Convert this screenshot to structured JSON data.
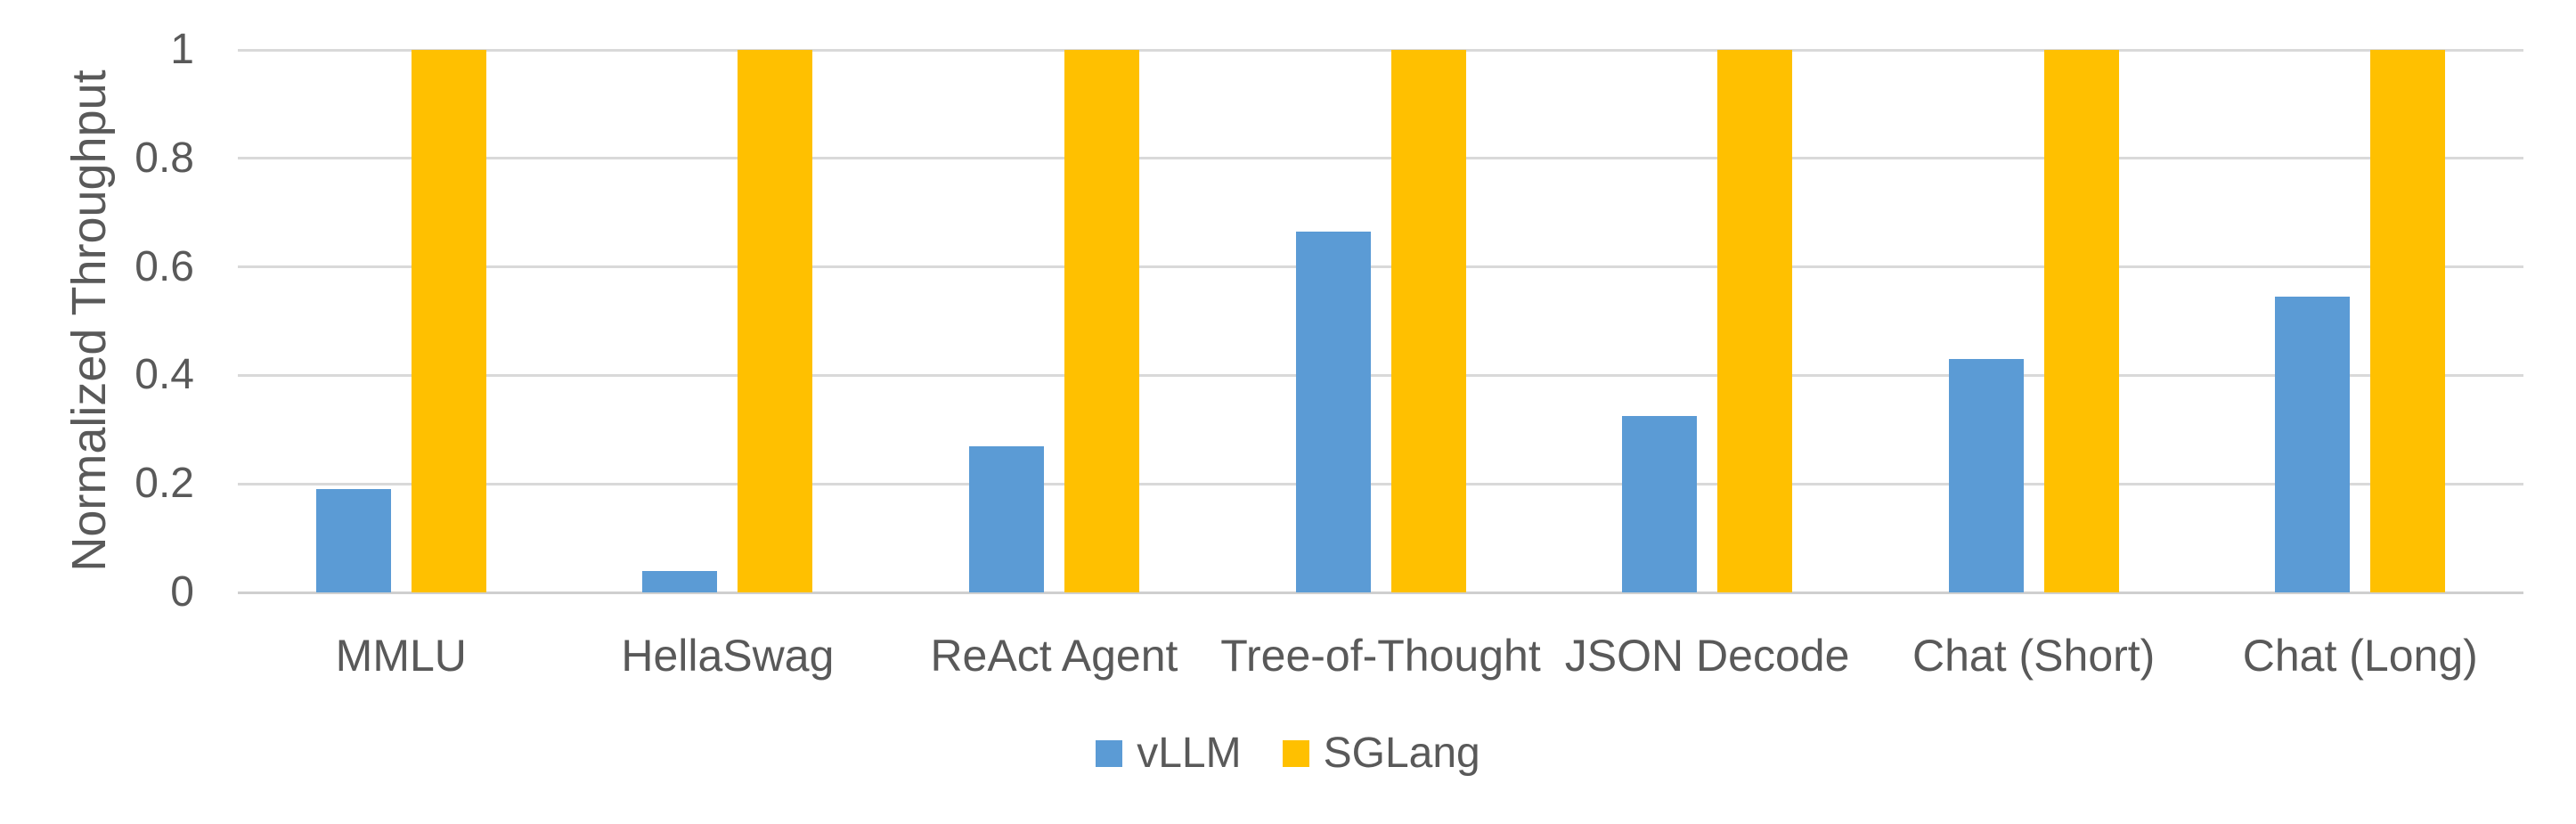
{
  "chart_data": {
    "type": "bar",
    "title": "",
    "xlabel": "",
    "ylabel": "Normalized Throughput",
    "categories": [
      "MMLU",
      "HellaSwag",
      "ReAct Agent",
      "Tree-of-Thought",
      "JSON Decode",
      "Chat (Short)",
      "Chat (Long)"
    ],
    "series": [
      {
        "name": "vLLM",
        "color": "#5B9BD5",
        "values": [
          0.19,
          0.04,
          0.27,
          0.665,
          0.325,
          0.43,
          0.545
        ]
      },
      {
        "name": "SGLang",
        "color": "#FFC000",
        "values": [
          1,
          1,
          1,
          1,
          1,
          1,
          1
        ]
      }
    ],
    "ylim": [
      0,
      1
    ],
    "yticks": [
      0,
      0.2,
      0.4,
      0.6,
      0.8,
      1
    ],
    "ytick_labels": [
      "0",
      "0.2",
      "0.4",
      "0.6",
      "0.8",
      "1"
    ],
    "grid": true,
    "gridline_color": "#D9D9D9",
    "text_color": "#595959",
    "background_color": "#FFFFFF",
    "legend_position": "bottom"
  }
}
